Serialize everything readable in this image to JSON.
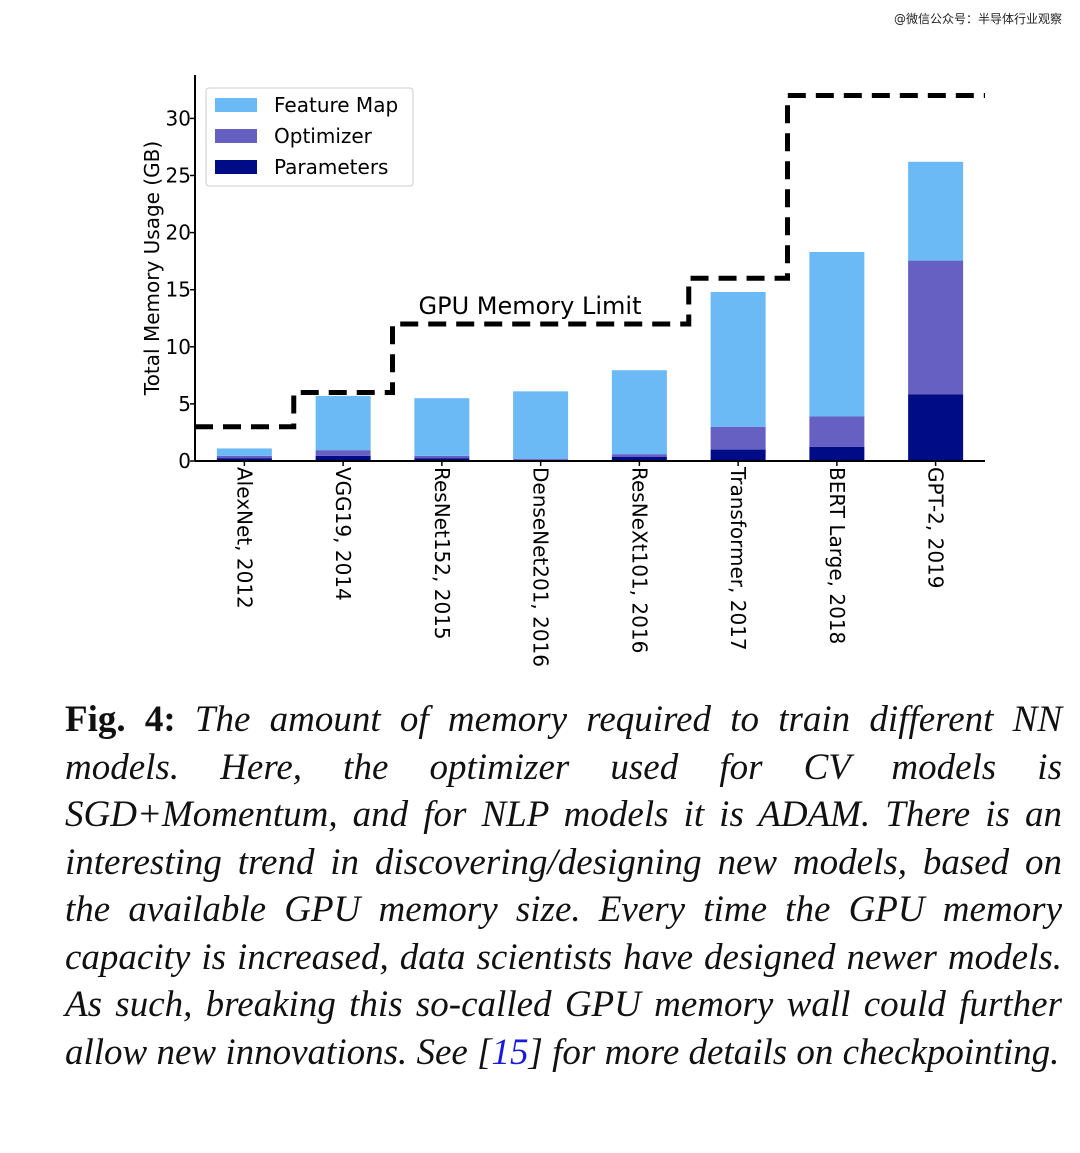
{
  "watermark": "@微信公众号：半导体行业观察",
  "chart_data": {
    "type": "bar",
    "stacked": true,
    "ylabel": "Total Memory Usage (GB)",
    "xlabel": "",
    "ylim": [
      0,
      33.8
    ],
    "yticks": [
      0,
      5,
      10,
      15,
      20,
      25,
      30
    ],
    "categories": [
      "AlexNet, 2012",
      "VGG19, 2014",
      "ResNet152, 2015",
      "DenseNet201, 2016",
      "ResNeXt101, 2016",
      "Transformer, 2017",
      "BERT Large, 2018",
      "GPT-2, 2019"
    ],
    "series": [
      {
        "name": "Parameters",
        "color": "#000c86",
        "values": [
          0.25,
          0.45,
          0.25,
          0.1,
          0.35,
          1.0,
          1.25,
          5.85
        ]
      },
      {
        "name": "Optimizer",
        "color": "#6560c2",
        "values": [
          0.2,
          0.5,
          0.2,
          0.1,
          0.25,
          2.0,
          2.65,
          11.7
        ]
      },
      {
        "name": "Feature Map",
        "color": "#6bbaf5",
        "values": [
          0.65,
          4.75,
          5.05,
          5.9,
          7.35,
          11.8,
          14.4,
          8.65
        ]
      }
    ],
    "legend_order": [
      "Feature Map",
      "Optimizer",
      "Parameters"
    ],
    "legend_position": "top-left",
    "gpu_limit": {
      "label": "GPU Memory Limit",
      "steps": [
        {
          "x_from": -0.5,
          "x_to": 0.5,
          "value": 3
        },
        {
          "x_from": 0.5,
          "x_to": 1.5,
          "value": 6
        },
        {
          "x_from": 1.5,
          "x_to": 4.5,
          "value": 12
        },
        {
          "x_from": 4.5,
          "x_to": 5.5,
          "value": 16
        },
        {
          "x_from": 5.5,
          "x_to": 7.5,
          "value": 32
        }
      ]
    }
  },
  "caption": {
    "fig_label": "Fig. 4:",
    "text_before_ref": " The amount of memory required to train different NN models. Here, the optimizer used for CV models is SGD+Momentum, and for NLP models it is ADAM. There is an interesting trend in discovering/designing new models, based on the available GPU memory size. Every time the GPU memory capacity is increased, data scientists have designed newer models. As such, breaking this so-called GPU memory wall could further allow new innovations. See [",
    "ref": "15",
    "text_after_ref": "] for more details on checkpointing."
  }
}
